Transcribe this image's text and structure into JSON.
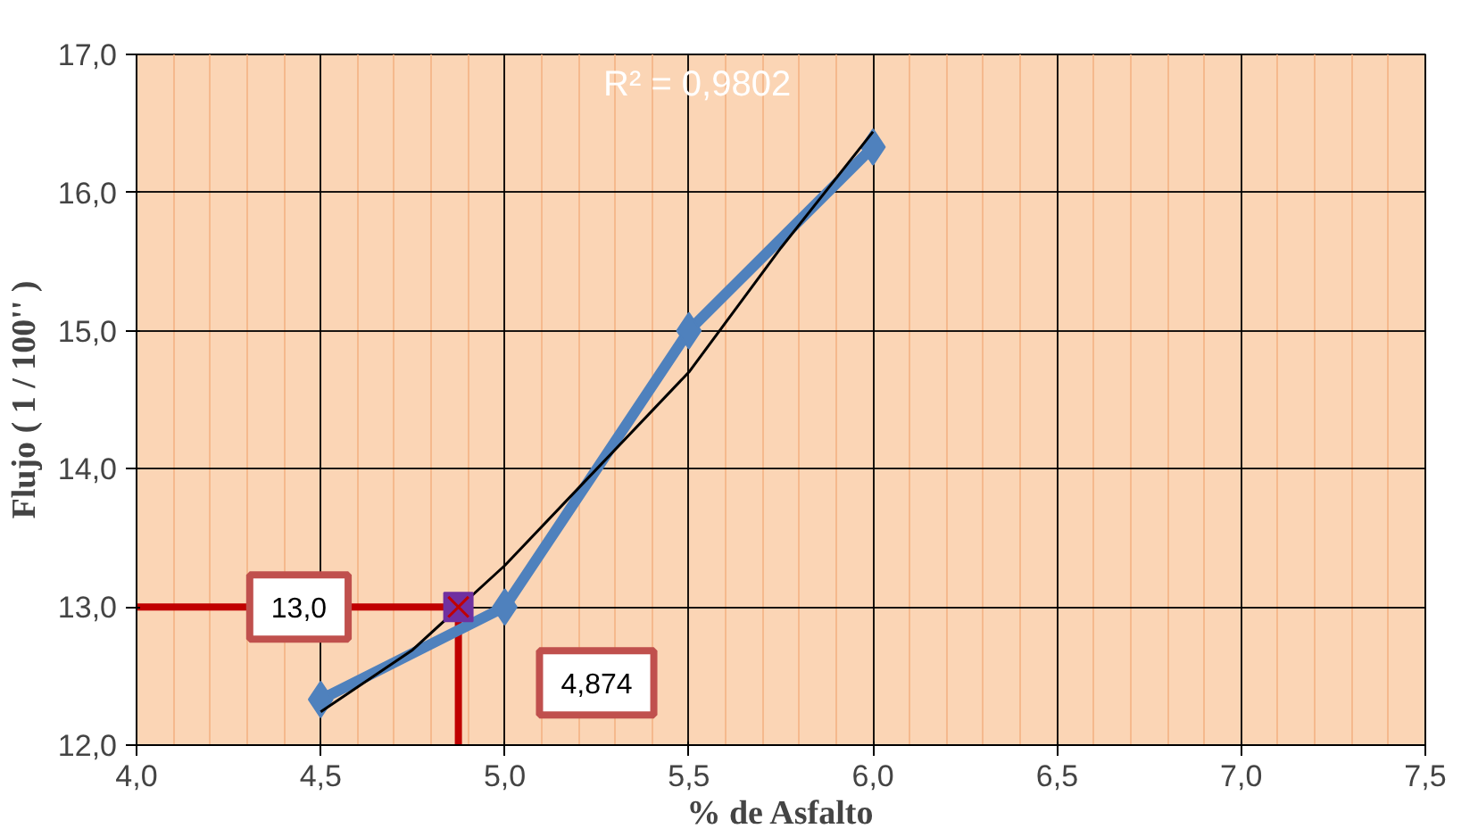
{
  "chart_data": {
    "type": "line",
    "xlabel": "% de Asfalto",
    "ylabel": "Flujo ( 1 / 100'' )",
    "xlim": [
      4.0,
      7.5
    ],
    "ylim": [
      12.0,
      17.0
    ],
    "xticks": [
      {
        "value": 4.0,
        "label": "4,0"
      },
      {
        "value": 4.5,
        "label": "4,5"
      },
      {
        "value": 5.0,
        "label": "5,0"
      },
      {
        "value": 5.5,
        "label": "5,5"
      },
      {
        "value": 6.0,
        "label": "6,0"
      },
      {
        "value": 6.5,
        "label": "6,5"
      },
      {
        "value": 7.0,
        "label": "7,0"
      },
      {
        "value": 7.5,
        "label": "7,5"
      }
    ],
    "yticks": [
      {
        "value": 12.0,
        "label": "12,0"
      },
      {
        "value": 13.0,
        "label": "13,0"
      },
      {
        "value": 14.0,
        "label": "14,0"
      },
      {
        "value": 15.0,
        "label": "15,0"
      },
      {
        "value": 16.0,
        "label": "16,0"
      },
      {
        "value": 17.0,
        "label": "17,0"
      }
    ],
    "grid": true,
    "series": [
      {
        "color": "#c00000",
        "x": [
          4.0,
          4.874,
          4.874
        ],
        "values": [
          13.0,
          13.0,
          12.0
        ],
        "marker": "none"
      },
      {
        "color": "#4f81bd",
        "x": [
          4.5,
          5.0,
          5.5,
          6.0
        ],
        "values": [
          12.33,
          13.0,
          15.0,
          16.33
        ],
        "marker": "diamond"
      },
      {
        "color": "#000000",
        "x": [
          4.5,
          4.75,
          5.0,
          5.25,
          5.5,
          5.75,
          6.0
        ],
        "values": [
          12.24,
          12.69,
          13.3,
          14.0,
          14.7,
          15.6,
          16.44
        ],
        "marker": "none"
      },
      {
        "type": "scatter",
        "color": "#7030a0",
        "x": [
          4.874
        ],
        "values": [
          13.0
        ],
        "marker": "square"
      }
    ],
    "annotations": [
      "R² = 0,9802",
      "13,0",
      "4,874"
    ]
  }
}
